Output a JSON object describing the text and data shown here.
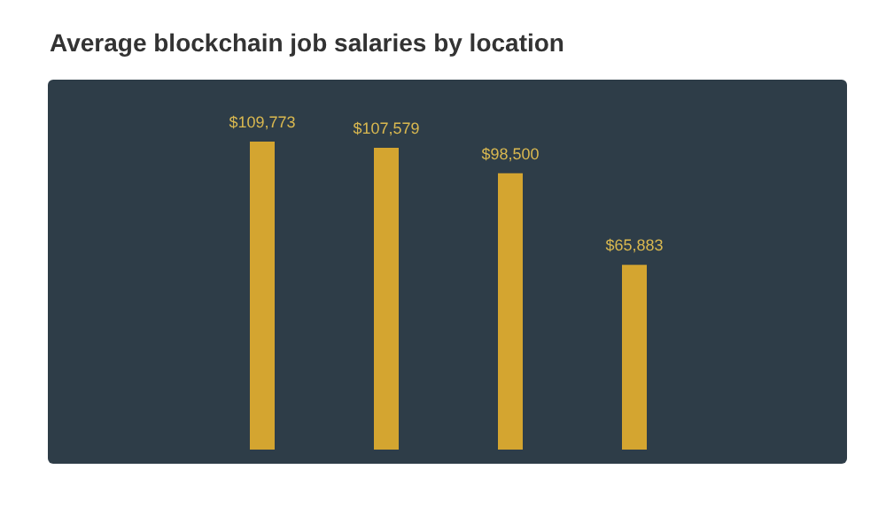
{
  "chart_data": {
    "type": "bar",
    "title": "Average blockchain job salaries by location",
    "categories": [
      null,
      null,
      null,
      null
    ],
    "values": [
      109773,
      107579,
      98500,
      65883
    ],
    "value_labels": [
      "$109,773",
      "$107,579",
      "$98,500",
      "$65,883"
    ],
    "color": "#d4a530",
    "grid": false,
    "legend": false
  }
}
